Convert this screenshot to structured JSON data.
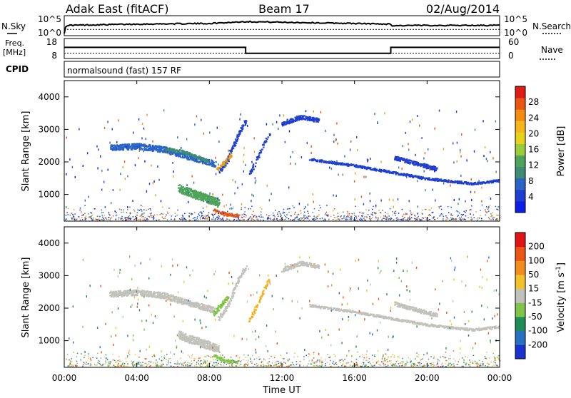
{
  "header": {
    "site": "Adak East (fitACF)",
    "beam": "Beam 17",
    "date": "02/Aug/2014"
  },
  "nsky_panel": {
    "left_label": "N.Sky",
    "left_ticks": [
      "10^5",
      "10^0"
    ],
    "right_label": "N.Search",
    "right_ticks": [
      "10^5",
      "10^0"
    ]
  },
  "freq_panel": {
    "left_label_top": "Freq.",
    "left_label_bottom": "[MHz]",
    "left_ticks": [
      "18",
      "8"
    ],
    "right_label": "Nave",
    "right_ticks": [
      "60",
      "0"
    ]
  },
  "cpid_panel": {
    "left_label": "CPID",
    "program": "normalsound (fast) 157 RF"
  },
  "chart_data": [
    {
      "type": "line",
      "name": "n-sky-nsearch",
      "x_unit": "hours UT",
      "xlim": [
        0,
        24
      ],
      "ylim": [
        0,
        5
      ],
      "y_scale": "log10",
      "series": [
        {
          "x": [
            0,
            0.1,
            2,
            4,
            6,
            8,
            10,
            12,
            14,
            16,
            18,
            18.05,
            20,
            22,
            24
          ],
          "y": [
            0,
            2.6,
            2.8,
            3.0,
            3.1,
            3.2,
            3.8,
            3.6,
            3.4,
            3.2,
            3.0,
            2.5,
            2.6,
            2.6,
            2.6
          ]
        },
        {
          "x": [
            0,
            24
          ],
          "y": [
            1.3,
            1.3
          ]
        }
      ]
    },
    {
      "type": "line",
      "name": "freq-nave",
      "x_unit": "hours UT",
      "xlim": [
        0,
        24
      ],
      "ylim": [
        8,
        18
      ],
      "series": [
        {
          "x": [
            0,
            10,
            10,
            18,
            18,
            24
          ],
          "y": [
            13.7,
            13.7,
            10.2,
            10.2,
            13.7,
            13.7
          ]
        },
        {
          "x": [
            0,
            24
          ],
          "y": [
            10.3,
            10.3
          ]
        }
      ]
    },
    {
      "type": "heatmap",
      "name": "power",
      "ylabel": "Slant Range [km]",
      "xlim": [
        0,
        24
      ],
      "ylim": [
        180,
        4500
      ],
      "yticks": [
        1000,
        2000,
        3000,
        4000
      ],
      "colorbar": {
        "label": "Power [dB]",
        "ticks": [
          "4",
          "8",
          "12",
          "16",
          "20",
          "24",
          "28"
        ],
        "colors": [
          "#0b1fe8",
          "#1f3fd0",
          "#2a64c6",
          "#3c8d73",
          "#4ea35a",
          "#9ccc3c",
          "#e6d21a",
          "#f6b61a",
          "#f58c0f",
          "#ea5510",
          "#e01c16"
        ]
      }
    },
    {
      "type": "heatmap",
      "name": "velocity",
      "ylabel": "Slant Range [km]",
      "xlabel": "Time UT",
      "xlim": [
        0,
        24
      ],
      "ylim": [
        180,
        4500
      ],
      "yticks": [
        1000,
        2000,
        3000,
        4000
      ],
      "xticks": [
        "00:00",
        "04:00",
        "08:00",
        "12:00",
        "16:00",
        "20:00",
        "00:00"
      ],
      "colorbar": {
        "label": "Velocity [m s^-1]",
        "ticks": [
          "200",
          "100",
          "50",
          "15",
          "-15",
          "-50",
          "-100",
          "-200"
        ],
        "colors": [
          "#1a33d0",
          "#2770c2",
          "#1f8c56",
          "#7ec548",
          "#c2c2bc",
          "#f2c22a",
          "#f28c1a",
          "#ec5514",
          "#e01414"
        ]
      },
      "scatter_bands": [
        {
          "x": [
            2.5,
            4.0,
            5.5,
            7.0,
            8.3
          ],
          "y": [
            2450,
            2500,
            2400,
            2150,
            1950
          ],
          "width_km": 180,
          "color": "#c2c2bc"
        },
        {
          "x": [
            8.5,
            9.0,
            9.5,
            10.0
          ],
          "y": [
            1700,
            2100,
            2800,
            3300
          ],
          "width_km": 120,
          "color": "#c2c2bc"
        },
        {
          "x": [
            6.3,
            7.0,
            7.8,
            8.5
          ],
          "y": [
            1200,
            1050,
            900,
            750
          ],
          "width_km": 250,
          "color": "#c2c2bc"
        },
        {
          "x": [
            8.2,
            8.8,
            9.6
          ],
          "y": [
            550,
            420,
            360
          ],
          "width_km": 90,
          "color": "#7ec548"
        },
        {
          "x": [
            10.2,
            10.6,
            11.0,
            11.3
          ],
          "y": [
            1650,
            2100,
            2600,
            2900
          ],
          "width_km": 100,
          "color": "#f2b020"
        },
        {
          "x": [
            8.2,
            8.6,
            9.0
          ],
          "y": [
            1850,
            2100,
            2350
          ],
          "width_km": 120,
          "color": "#7ec548"
        },
        {
          "x": [
            13.5,
            16,
            18,
            20,
            22.5,
            24
          ],
          "y": [
            2100,
            1900,
            1700,
            1500,
            1350,
            1450
          ],
          "width_km": 70,
          "color": "#c2c2bc"
        },
        {
          "x": [
            18.2,
            19.5,
            20.5
          ],
          "y": [
            2150,
            1950,
            1800
          ],
          "width_km": 120,
          "color": "#c2c2bc"
        },
        {
          "x": [
            12,
            13,
            14
          ],
          "y": [
            3200,
            3400,
            3300
          ],
          "width_km": 130,
          "color": "#c2c2bc"
        }
      ],
      "power_bands": [
        {
          "x": [
            2.5,
            4.0,
            5.5,
            7.0,
            8.3
          ],
          "y": [
            2450,
            2500,
            2400,
            2150,
            1950
          ],
          "width_km": 180,
          "color": "#2a64c6"
        },
        {
          "x": [
            5.6,
            6.4,
            7.2,
            7.9
          ],
          "y": [
            2400,
            2350,
            2200,
            2050
          ],
          "width_km": 90,
          "color": "#3c8d73"
        },
        {
          "x": [
            8.5,
            9.0,
            9.5,
            10.0
          ],
          "y": [
            1700,
            2100,
            2800,
            3300
          ],
          "width_km": 120,
          "color": "#1f3fd0"
        },
        {
          "x": [
            8.4,
            8.8,
            9.2
          ],
          "y": [
            1800,
            2000,
            2250
          ],
          "width_km": 100,
          "color": "#e6a01a"
        },
        {
          "x": [
            6.3,
            7.0,
            7.8,
            8.5
          ],
          "y": [
            1200,
            1050,
            900,
            750
          ],
          "width_km": 250,
          "color": "#4ea35a"
        },
        {
          "x": [
            8.2,
            8.8,
            9.6
          ],
          "y": [
            550,
            420,
            360
          ],
          "width_km": 90,
          "color": "#ea5510"
        },
        {
          "x": [
            10.2,
            10.6,
            11.0,
            11.3
          ],
          "y": [
            1650,
            2100,
            2600,
            2900
          ],
          "width_km": 100,
          "color": "#1f3fd0"
        },
        {
          "x": [
            13.5,
            16,
            18,
            20,
            22.5,
            24
          ],
          "y": [
            2100,
            1900,
            1700,
            1500,
            1350,
            1450
          ],
          "width_km": 70,
          "color": "#1f3fd0"
        },
        {
          "x": [
            18.2,
            19.5,
            20.5
          ],
          "y": [
            2150,
            1950,
            1800
          ],
          "width_km": 120,
          "color": "#1f3fd0"
        },
        {
          "x": [
            12,
            13,
            14
          ],
          "y": [
            3200,
            3400,
            3300
          ],
          "width_km": 130,
          "color": "#1f3fd0"
        }
      ]
    }
  ]
}
